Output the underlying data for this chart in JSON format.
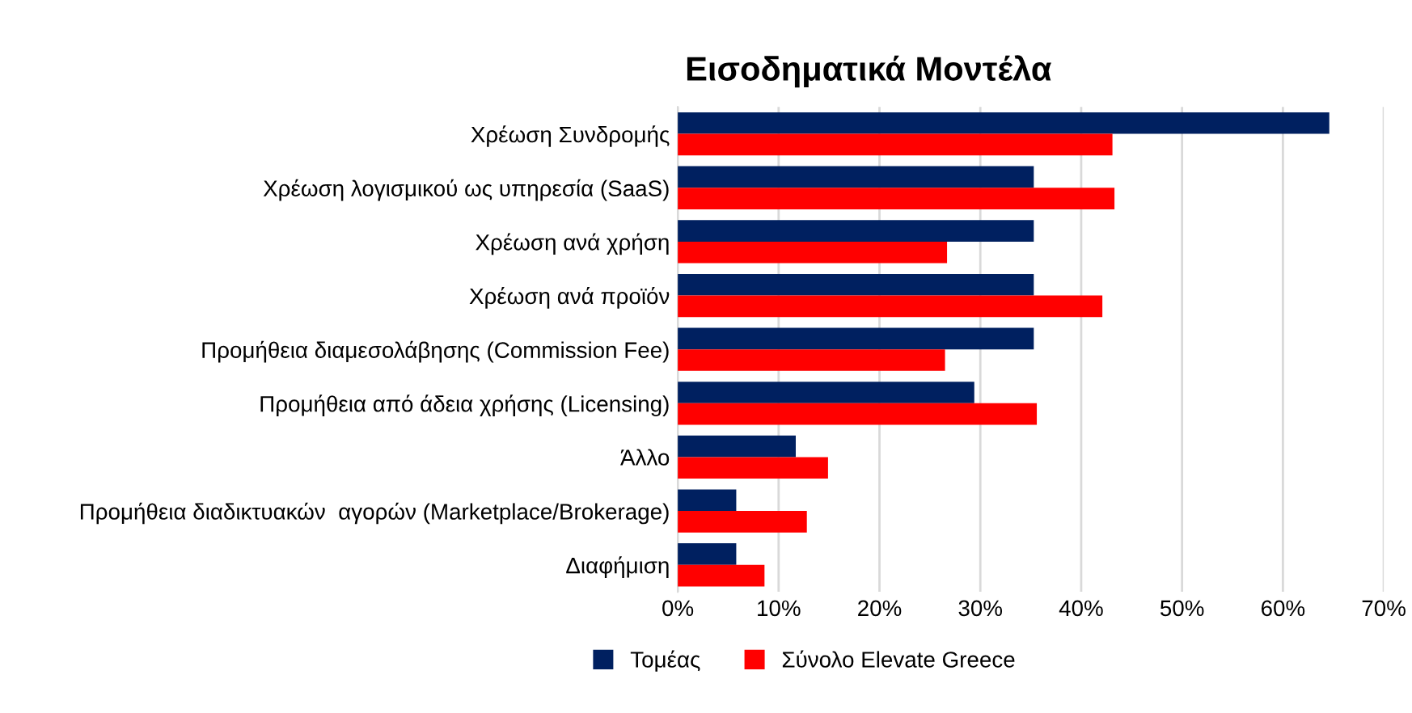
{
  "chart_data": {
    "type": "bar",
    "orientation": "horizontal",
    "title": "Εισοδηματικά Μοντέλα",
    "categories": [
      "Χρέωση Συνδρομής",
      "Χρέωση λογισμικού ως υπηρεσία (SaaS)",
      "Χρέωση ανά χρήση",
      "Χρέωση ανά προϊόν",
      "Προμήθεια διαμεσολάβησης (Commission Fee)",
      "Προμήθεια από άδεια χρήσης (Licensing)",
      "Άλλο",
      "Προμήθεια διαδικτυακών  αγορών (Marketplace/Brokerage)",
      "Διαφήμιση"
    ],
    "series": [
      {
        "name": "Τομέας",
        "color": "#002060",
        "values": [
          64.6,
          35.3,
          35.3,
          35.3,
          35.3,
          29.4,
          11.7,
          5.8,
          5.8
        ]
      },
      {
        "name": "Σύνολο Elevate Greece",
        "color": "#ff0000",
        "values": [
          43.1,
          43.3,
          26.7,
          42.1,
          26.5,
          35.6,
          14.9,
          12.8,
          8.6
        ]
      }
    ],
    "xlim": [
      0,
      70
    ],
    "xticks": [
      {
        "value": 0,
        "label": "0%"
      },
      {
        "value": 10,
        "label": "10%"
      },
      {
        "value": 20,
        "label": "20%"
      },
      {
        "value": 30,
        "label": "30%"
      },
      {
        "value": 40,
        "label": "40%"
      },
      {
        "value": 50,
        "label": "50%"
      },
      {
        "value": 60,
        "label": "60%"
      },
      {
        "value": 70,
        "label": "70%"
      }
    ],
    "grid": "x",
    "legend": "bottom"
  }
}
